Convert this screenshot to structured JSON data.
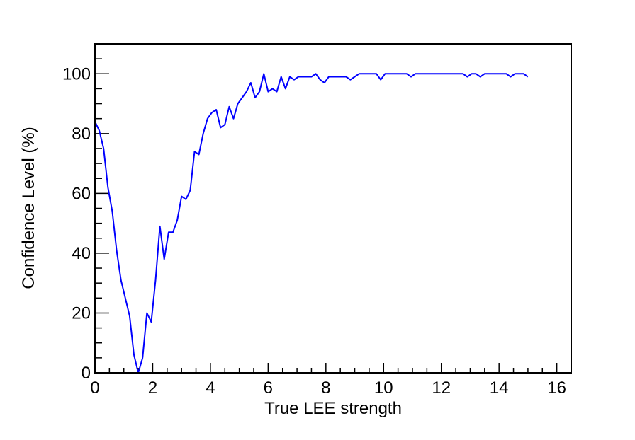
{
  "chart_data": {
    "type": "line",
    "xlabel": "True LEE strength",
    "ylabel": "Confidence Level (%)",
    "xlim": [
      0,
      16.5
    ],
    "ylim": [
      0,
      110
    ],
    "x_ticks": [
      0,
      2,
      4,
      6,
      8,
      10,
      12,
      14,
      16
    ],
    "y_ticks": [
      0,
      20,
      40,
      60,
      80,
      100
    ],
    "grid": false,
    "legend": "none",
    "series": [
      {
        "color": "#0000ff",
        "points": [
          [
            0,
            84
          ],
          [
            0.15,
            81
          ],
          [
            0.3,
            75
          ],
          [
            0.45,
            62
          ],
          [
            0.6,
            54
          ],
          [
            0.75,
            41
          ],
          [
            0.9,
            31
          ],
          [
            1.05,
            25
          ],
          [
            1.2,
            19
          ],
          [
            1.35,
            6
          ],
          [
            1.5,
            0
          ],
          [
            1.65,
            5
          ],
          [
            1.8,
            20
          ],
          [
            1.95,
            17
          ],
          [
            2.1,
            31
          ],
          [
            2.25,
            49
          ],
          [
            2.4,
            38
          ],
          [
            2.55,
            47
          ],
          [
            2.7,
            47
          ],
          [
            2.85,
            51
          ],
          [
            3.0,
            59
          ],
          [
            3.15,
            58
          ],
          [
            3.3,
            61
          ],
          [
            3.45,
            74
          ],
          [
            3.6,
            73
          ],
          [
            3.75,
            80
          ],
          [
            3.9,
            85
          ],
          [
            4.05,
            87
          ],
          [
            4.2,
            88
          ],
          [
            4.35,
            82
          ],
          [
            4.5,
            83
          ],
          [
            4.65,
            89
          ],
          [
            4.8,
            85
          ],
          [
            4.95,
            90
          ],
          [
            5.1,
            92
          ],
          [
            5.25,
            94
          ],
          [
            5.4,
            97
          ],
          [
            5.55,
            92
          ],
          [
            5.7,
            94
          ],
          [
            5.85,
            100
          ],
          [
            6.0,
            94
          ],
          [
            6.15,
            95
          ],
          [
            6.3,
            94
          ],
          [
            6.45,
            99
          ],
          [
            6.6,
            95
          ],
          [
            6.75,
            99
          ],
          [
            6.9,
            98
          ],
          [
            7.05,
            99
          ],
          [
            7.2,
            99
          ],
          [
            7.35,
            99
          ],
          [
            7.5,
            99
          ],
          [
            7.65,
            100
          ],
          [
            7.8,
            98
          ],
          [
            7.95,
            97
          ],
          [
            8.1,
            99
          ],
          [
            8.25,
            99
          ],
          [
            8.4,
            99
          ],
          [
            8.55,
            99
          ],
          [
            8.7,
            99
          ],
          [
            8.85,
            98
          ],
          [
            9.0,
            99
          ],
          [
            9.15,
            100
          ],
          [
            9.3,
            100
          ],
          [
            9.45,
            100
          ],
          [
            9.6,
            100
          ],
          [
            9.75,
            100
          ],
          [
            9.9,
            98
          ],
          [
            10.05,
            100
          ],
          [
            10.2,
            100
          ],
          [
            10.35,
            100
          ],
          [
            10.5,
            100
          ],
          [
            10.65,
            100
          ],
          [
            10.8,
            100
          ],
          [
            10.95,
            99
          ],
          [
            11.1,
            100
          ],
          [
            11.25,
            100
          ],
          [
            11.4,
            100
          ],
          [
            11.55,
            100
          ],
          [
            11.7,
            100
          ],
          [
            11.85,
            100
          ],
          [
            12.0,
            100
          ],
          [
            12.15,
            100
          ],
          [
            12.3,
            100
          ],
          [
            12.45,
            100
          ],
          [
            12.6,
            100
          ],
          [
            12.75,
            100
          ],
          [
            12.9,
            99
          ],
          [
            13.05,
            100
          ],
          [
            13.2,
            100
          ],
          [
            13.35,
            99
          ],
          [
            13.5,
            100
          ],
          [
            13.65,
            100
          ],
          [
            13.8,
            100
          ],
          [
            13.95,
            100
          ],
          [
            14.1,
            100
          ],
          [
            14.25,
            100
          ],
          [
            14.4,
            99
          ],
          [
            14.55,
            100
          ],
          [
            14.7,
            100
          ],
          [
            14.85,
            100
          ],
          [
            15.0,
            99
          ]
        ]
      }
    ]
  }
}
